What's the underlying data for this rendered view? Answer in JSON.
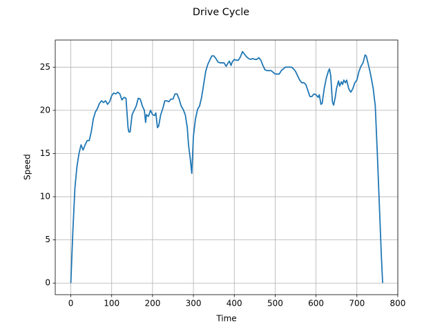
{
  "chart_data": {
    "type": "line",
    "title": "Drive Cycle",
    "xlabel": "Time",
    "ylabel": "Speed",
    "grid": true,
    "xlim": [
      -38.1,
      800.1
    ],
    "ylim": [
      -1.34,
      28.14
    ],
    "xticks": [
      0,
      100,
      200,
      300,
      400,
      500,
      600,
      700,
      800
    ],
    "yticks": [
      0,
      5,
      10,
      15,
      20,
      25
    ],
    "series": [
      {
        "color": "#1f77b4",
        "x": [
          0,
          5,
          10,
          15,
          20,
          25,
          30,
          35,
          40,
          45,
          50,
          55,
          60,
          65,
          70,
          75,
          80,
          85,
          90,
          95,
          100,
          105,
          110,
          115,
          120,
          125,
          130,
          135,
          140,
          142,
          145,
          150,
          155,
          160,
          165,
          170,
          175,
          180,
          183,
          185,
          190,
          195,
          200,
          205,
          208,
          212,
          215,
          220,
          225,
          230,
          235,
          240,
          245,
          250,
          255,
          260,
          265,
          270,
          275,
          280,
          285,
          288,
          292,
          296,
          300,
          305,
          310,
          315,
          320,
          325,
          330,
          335,
          340,
          345,
          350,
          355,
          360,
          365,
          370,
          375,
          380,
          385,
          388,
          392,
          395,
          400,
          405,
          410,
          415,
          420,
          425,
          430,
          435,
          440,
          445,
          450,
          455,
          460,
          465,
          470,
          475,
          480,
          485,
          490,
          495,
          500,
          505,
          510,
          515,
          520,
          525,
          530,
          535,
          540,
          545,
          550,
          555,
          560,
          565,
          570,
          575,
          580,
          585,
          590,
          595,
          600,
          605,
          608,
          612,
          615,
          620,
          625,
          630,
          633,
          636,
          640,
          643,
          647,
          650,
          655,
          658,
          662,
          665,
          668,
          672,
          675,
          680,
          685,
          690,
          695,
          700,
          705,
          710,
          715,
          720,
          723,
          727,
          732,
          735,
          740,
          745,
          750,
          755,
          760,
          763
        ],
        "values": [
          0,
          6,
          11,
          13.5,
          15,
          16,
          15.4,
          16,
          16.5,
          16.5,
          17.5,
          19,
          19.8,
          20.2,
          20.8,
          21.1,
          20.9,
          21.1,
          20.7,
          21,
          21.7,
          22,
          21.9,
          22.1,
          21.9,
          21.2,
          21.5,
          21.4,
          18,
          17.5,
          17.5,
          19.5,
          20,
          20.5,
          21.4,
          21.3,
          20.5,
          20,
          18.6,
          19.5,
          19.3,
          20,
          19.5,
          19.4,
          19.7,
          18,
          18.2,
          19.5,
          20.2,
          21.1,
          21.1,
          21,
          21.3,
          21.3,
          21.9,
          21.9,
          21.3,
          20.5,
          20.1,
          19.5,
          18,
          16,
          14.5,
          12.7,
          17,
          19,
          20.1,
          20.5,
          21.5,
          23,
          24.5,
          25.3,
          25.8,
          26.3,
          26.3,
          26,
          25.6,
          25.5,
          25.5,
          25.5,
          25.1,
          25.5,
          25.7,
          25.2,
          25.6,
          25.9,
          25.8,
          25.8,
          26.2,
          26.8,
          26.5,
          26.2,
          26,
          25.9,
          26,
          25.9,
          25.9,
          26.1,
          25.8,
          25.2,
          24.7,
          24.6,
          24.6,
          24.6,
          24.4,
          24.2,
          24.2,
          24.2,
          24.6,
          24.8,
          25,
          25,
          25,
          25,
          24.8,
          24.5,
          24,
          23.5,
          23.2,
          23.2,
          23,
          22.3,
          21.6,
          21.6,
          21.9,
          21.8,
          21.5,
          21.8,
          20.7,
          20.8,
          22.5,
          23.7,
          24.5,
          24.8,
          24,
          21,
          20.6,
          21.5,
          22.5,
          23.4,
          22.8,
          23.3,
          23,
          23.5,
          23.2,
          23.5,
          22.5,
          22.1,
          22.5,
          23.2,
          23.5,
          24.5,
          25.1,
          25.5,
          26.4,
          26.3,
          25.5,
          24.5,
          23.8,
          22.5,
          20.5,
          15,
          9,
          3,
          0
        ]
      }
    ]
  }
}
